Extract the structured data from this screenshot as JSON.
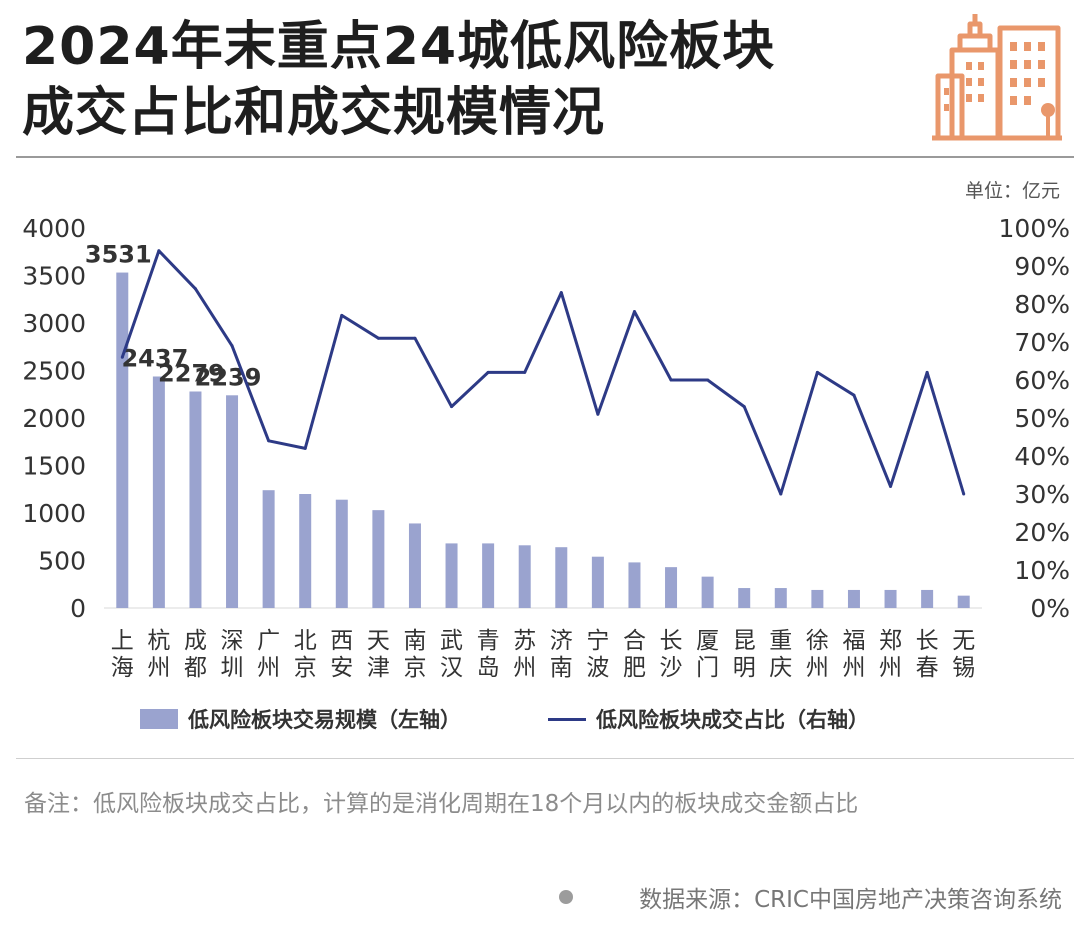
{
  "title": {
    "line1": "2024年末重点24城低风险板块",
    "line2": "成交占比和成交规模情况"
  },
  "logo_icon": "city-buildings-icon",
  "unit_label": "单位：亿元",
  "chart_data": {
    "type": "bar+line",
    "categories": [
      "上海",
      "杭州",
      "成都",
      "深圳",
      "广州",
      "北京",
      "西安",
      "天津",
      "南京",
      "武汉",
      "青岛",
      "苏州",
      "济南",
      "宁波",
      "合肥",
      "长沙",
      "厦门",
      "昆明",
      "重庆",
      "徐州",
      "福州",
      "郑州",
      "长春",
      "无锡"
    ],
    "category_lines": [
      [
        "上",
        "海"
      ],
      [
        "杭",
        "州"
      ],
      [
        "成",
        "都"
      ],
      [
        "深",
        "圳"
      ],
      [
        "广",
        "州"
      ],
      [
        "北",
        "京"
      ],
      [
        "西",
        "安"
      ],
      [
        "天",
        "津"
      ],
      [
        "南",
        "京"
      ],
      [
        "武",
        "汉"
      ],
      [
        "青",
        "岛"
      ],
      [
        "苏",
        "州"
      ],
      [
        "济",
        "南"
      ],
      [
        "宁",
        "波"
      ],
      [
        "合",
        "肥"
      ],
      [
        "长",
        "沙"
      ],
      [
        "厦",
        "门"
      ],
      [
        "昆",
        "明"
      ],
      [
        "重",
        "庆"
      ],
      [
        "徐",
        "州"
      ],
      [
        "福",
        "州"
      ],
      [
        "郑",
        "州"
      ],
      [
        "长",
        "春"
      ],
      [
        "无",
        "锡"
      ]
    ],
    "series": [
      {
        "name": "低风险板块交易规模（左轴）",
        "type": "bar",
        "axis": "left",
        "color": "#9aa3cf",
        "values": [
          3531,
          2437,
          2279,
          2239,
          1240,
          1200,
          1140,
          1030,
          890,
          680,
          680,
          660,
          640,
          540,
          480,
          430,
          330,
          210,
          210,
          190,
          190,
          190,
          190,
          130
        ],
        "data_labels": [
          {
            "index": 0,
            "text": "3531"
          },
          {
            "index": 1,
            "text": "2437"
          },
          {
            "index": 2,
            "text": "2279"
          },
          {
            "index": 3,
            "text": "2239"
          }
        ]
      },
      {
        "name": "低风险板块成交占比（右轴）",
        "type": "line",
        "axis": "right",
        "color": "#2d3a86",
        "values": [
          0.66,
          0.94,
          0.84,
          0.69,
          0.44,
          0.42,
          0.77,
          0.71,
          0.71,
          0.53,
          0.62,
          0.62,
          0.83,
          0.51,
          0.78,
          0.6,
          0.6,
          0.53,
          0.3,
          0.62,
          0.56,
          0.32,
          0.62,
          0.3
        ]
      }
    ],
    "y_left": {
      "min": 0,
      "max": 4000,
      "ticks": [
        "0",
        "500",
        "1000",
        "1500",
        "2000",
        "2500",
        "3000",
        "3500",
        "4000"
      ]
    },
    "y_right": {
      "min": 0,
      "max": 1,
      "ticks": [
        "0%",
        "10%",
        "20%",
        "30%",
        "40%",
        "50%",
        "60%",
        "70%",
        "80%",
        "90%",
        "100%"
      ]
    },
    "grid": false,
    "legend_position": "bottom"
  },
  "legend": {
    "bar_label": "低风险板块交易规模（左轴）",
    "line_label": "低风险板块成交占比（右轴）"
  },
  "note": "备注：低风险板块成交占比，计算的是消化周期在18个月以内的板块成交金额占比",
  "source": "数据来源：CRIC中国房地产决策咨询系统"
}
